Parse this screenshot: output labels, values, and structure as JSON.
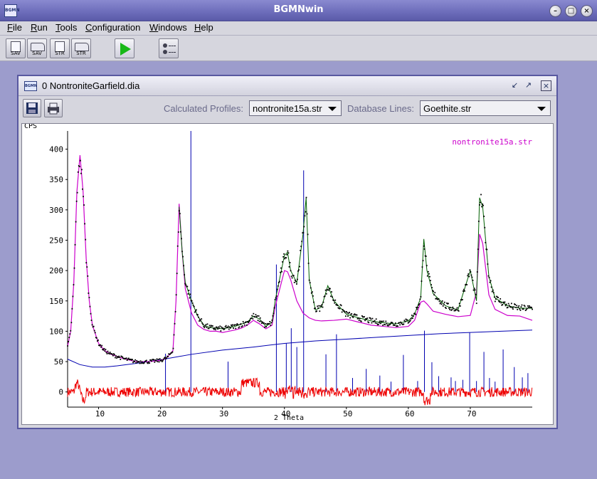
{
  "window": {
    "title": "BGMNwin",
    "logo_text": "BGMN",
    "controls": [
      "minimize",
      "maximize",
      "close"
    ]
  },
  "menubar": {
    "items": [
      {
        "label": "File",
        "mnemonic": "F"
      },
      {
        "label": "Run",
        "mnemonic": "R"
      },
      {
        "label": "Tools",
        "mnemonic": "T"
      },
      {
        "label": "Configuration",
        "mnemonic": "C"
      },
      {
        "label": "Windows",
        "mnemonic": "W"
      },
      {
        "label": "Help",
        "mnemonic": "H"
      }
    ]
  },
  "toolbar": {
    "buttons": [
      {
        "name": "save-sav-button",
        "label": "SAV",
        "icon": "document-icon"
      },
      {
        "name": "open-sav-button",
        "label": "SAV",
        "icon": "folder-icon"
      },
      {
        "name": "save-str-button",
        "label": "STR",
        "icon": "document-icon"
      },
      {
        "name": "open-str-button",
        "label": "STR",
        "icon": "folder-icon"
      },
      {
        "name": "run-button",
        "label": "",
        "icon": "play-icon"
      },
      {
        "name": "configuration-button",
        "label": "",
        "icon": "settings-icon"
      }
    ]
  },
  "frame": {
    "title": "0 NontroniteGarfield.dia",
    "icon_text": "BGMN",
    "calculated_profiles_label": "Calculated Profiles:",
    "calculated_profiles_value": "nontronite15a.str",
    "database_lines_label": "Database Lines:",
    "database_lines_value": "Goethite.str"
  },
  "chart_data": {
    "type": "line",
    "ylabel": "CPS",
    "xlabel": "2 Theta",
    "legend": "nontronite15a.str",
    "legend_position": "top-right",
    "xlim": [
      5,
      80
    ],
    "ylim": [
      -25,
      430
    ],
    "xticks": [
      10,
      20,
      30,
      40,
      50,
      60,
      70
    ],
    "yticks": [
      0,
      50,
      100,
      150,
      200,
      250,
      300,
      350,
      400
    ],
    "colors": {
      "observed": "#000000",
      "calculated": "#cc00cc",
      "fit": "#006000",
      "background": "#0000b0",
      "difference": "#ee0000",
      "database_lines": "#0000b0",
      "legend": "#cc00cc"
    },
    "series": [
      {
        "name": "calculated",
        "x": [
          5,
          5.5,
          6,
          6.5,
          7,
          7.5,
          8,
          8.5,
          9,
          10,
          11,
          12,
          14,
          16,
          18,
          20,
          21,
          22,
          22.5,
          23,
          23.5,
          24,
          25,
          26,
          27,
          28,
          29,
          30,
          31,
          32,
          33,
          34,
          35,
          36,
          37,
          38,
          38.5,
          39,
          40,
          40.5,
          41,
          42,
          43,
          44,
          45,
          46,
          48,
          50,
          52,
          54,
          56,
          58,
          60,
          61,
          62,
          62.5,
          63,
          64,
          66,
          68,
          70,
          71,
          71.5,
          72,
          73,
          74,
          76,
          78,
          80
        ],
        "values": [
          75,
          100,
          180,
          330,
          390,
          330,
          220,
          150,
          110,
          80,
          68,
          62,
          55,
          50,
          50,
          52,
          56,
          68,
          150,
          310,
          230,
          170,
          130,
          110,
          103,
          100,
          100,
          98,
          100,
          102,
          105,
          110,
          118,
          112,
          104,
          110,
          140,
          160,
          200,
          198,
          185,
          150,
          130,
          122,
          118,
          117,
          118,
          120,
          115,
          110,
          108,
          106,
          108,
          118,
          148,
          150,
          145,
          133,
          128,
          124,
          126,
          165,
          260,
          245,
          160,
          136,
          126,
          125,
          118
        ]
      },
      {
        "name": "background",
        "x": [
          5,
          7,
          9,
          11,
          13,
          16,
          20,
          25,
          30,
          35,
          40,
          45,
          50,
          55,
          60,
          65,
          70,
          75,
          80
        ],
        "values": [
          54,
          45,
          41,
          41,
          43,
          47,
          53,
          62,
          69,
          74,
          80,
          84,
          87,
          90,
          93,
          96,
          98,
          100,
          102
        ]
      },
      {
        "name": "fit",
        "x": [
          23,
          23.5,
          24,
          25,
          26,
          27,
          28,
          30,
          32,
          34,
          35,
          36,
          37,
          38,
          38.5,
          39,
          40,
          40.5,
          41,
          42,
          43,
          43.5,
          44,
          45,
          46,
          47,
          48,
          50,
          52,
          54,
          56,
          58,
          60,
          61,
          62,
          62.5,
          63,
          64,
          66,
          68,
          70,
          71,
          71.5,
          72,
          73,
          74,
          76,
          78,
          80
        ],
        "values": [
          305,
          230,
          180,
          150,
          125,
          110,
          106,
          104,
          108,
          115,
          125,
          120,
          108,
          115,
          150,
          175,
          225,
          230,
          200,
          180,
          260,
          320,
          185,
          135,
          140,
          175,
          150,
          128,
          122,
          117,
          114,
          112,
          117,
          128,
          155,
          252,
          200,
          162,
          142,
          135,
          200,
          150,
          320,
          305,
          190,
          155,
          142,
          138,
          138
        ]
      }
    ],
    "database_lines": [
      {
        "x": 20.8,
        "height": 63
      },
      {
        "x": 24.9,
        "height": 430
      },
      {
        "x": 30.9,
        "height": 50
      },
      {
        "x": 38.7,
        "height": 210
      },
      {
        "x": 40.3,
        "height": 80
      },
      {
        "x": 41.1,
        "height": 105
      },
      {
        "x": 42.0,
        "height": 74
      },
      {
        "x": 43.1,
        "height": 365
      },
      {
        "x": 46.7,
        "height": 62
      },
      {
        "x": 48.4,
        "height": 95
      },
      {
        "x": 51.0,
        "height": 23
      },
      {
        "x": 53.2,
        "height": 38
      },
      {
        "x": 55.4,
        "height": 27
      },
      {
        "x": 57.2,
        "height": 17
      },
      {
        "x": 59.2,
        "height": 61
      },
      {
        "x": 61.5,
        "height": 18
      },
      {
        "x": 62.6,
        "height": 101
      },
      {
        "x": 63.8,
        "height": 49
      },
      {
        "x": 64.9,
        "height": 26
      },
      {
        "x": 66.9,
        "height": 24
      },
      {
        "x": 67.6,
        "height": 18
      },
      {
        "x": 68.8,
        "height": 20
      },
      {
        "x": 69.9,
        "height": 98
      },
      {
        "x": 71.0,
        "height": 18
      },
      {
        "x": 72.2,
        "height": 66
      },
      {
        "x": 73.1,
        "height": 23
      },
      {
        "x": 74.0,
        "height": 17
      },
      {
        "x": 75.3,
        "height": 70
      },
      {
        "x": 77.1,
        "height": 41
      },
      {
        "x": 78.4,
        "height": 24
      },
      {
        "x": 79.3,
        "height": 31
      }
    ]
  }
}
